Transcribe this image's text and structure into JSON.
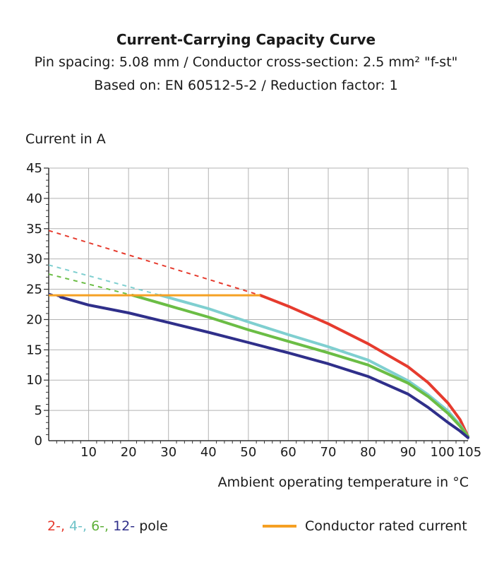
{
  "chart_data": {
    "type": "line",
    "title": "Current-Carrying Capacity Curve",
    "subtitle_lines": [
      "Pin spacing: 5.08 mm / Conductor cross-section: 2.5 mm² \"f-st\"",
      "Based on: EN 60512-5-2 / Reduction factor: 1"
    ],
    "ylabel": "Current in A",
    "xlabel": "Ambient operating temperature in °C",
    "xlim": [
      0,
      105
    ],
    "ylim": [
      0,
      45
    ],
    "xticks": [
      "10",
      "20",
      "30",
      "40",
      "50",
      "60",
      "70",
      "80",
      "90",
      "100",
      "105"
    ],
    "yticks": [
      "0",
      "5",
      "10",
      "15",
      "20",
      "25",
      "30",
      "35",
      "40",
      "45"
    ],
    "grid": true,
    "colors": {
      "pole2": "#e63b2e",
      "pole4": "#7fcfd0",
      "pole6": "#6bbd45",
      "pole12": "#2f2f8a",
      "rated": "#f5a023",
      "grid": "#b3b3b3"
    },
    "series": [
      {
        "name": "2-",
        "color": "#e63b2e",
        "extrapolated": [
          [
            0,
            34.7
          ],
          [
            53,
            24
          ]
        ],
        "solid": [
          [
            53,
            24
          ],
          [
            60,
            22.2
          ],
          [
            70,
            19.3
          ],
          [
            80,
            16
          ],
          [
            90,
            12.2
          ],
          [
            95,
            9.6
          ],
          [
            100,
            6.2
          ],
          [
            103,
            3.5
          ],
          [
            105,
            0.7
          ]
        ]
      },
      {
        "name": "4-",
        "color": "#7fcfd0",
        "extrapolated": [
          [
            0,
            29
          ],
          [
            28,
            24
          ]
        ],
        "solid": [
          [
            28,
            24
          ],
          [
            40,
            21.8
          ],
          [
            50,
            19.6
          ],
          [
            60,
            17.5
          ],
          [
            70,
            15.5
          ],
          [
            80,
            13.3
          ],
          [
            90,
            9.9
          ],
          [
            95,
            7.6
          ],
          [
            100,
            4.9
          ],
          [
            103,
            2.6
          ],
          [
            105,
            0.7
          ]
        ]
      },
      {
        "name": "6-",
        "color": "#6bbd45",
        "extrapolated": [
          [
            0,
            27.5
          ],
          [
            21,
            24
          ]
        ],
        "solid": [
          [
            21,
            24
          ],
          [
            30,
            22.3
          ],
          [
            40,
            20.4
          ],
          [
            50,
            18.3
          ],
          [
            60,
            16.4
          ],
          [
            70,
            14.5
          ],
          [
            80,
            12.5
          ],
          [
            90,
            9.5
          ],
          [
            95,
            7.3
          ],
          [
            100,
            4.5
          ],
          [
            103,
            2.4
          ],
          [
            105,
            0.7
          ]
        ]
      },
      {
        "name": "12-",
        "color": "#2f2f8a",
        "extrapolated": [
          [
            0,
            24.3
          ],
          [
            3,
            23.7
          ]
        ],
        "solid": [
          [
            3,
            23.7
          ],
          [
            10,
            22.4
          ],
          [
            20,
            21.1
          ],
          [
            30,
            19.5
          ],
          [
            40,
            17.9
          ],
          [
            50,
            16.2
          ],
          [
            60,
            14.5
          ],
          [
            70,
            12.7
          ],
          [
            80,
            10.6
          ],
          [
            90,
            7.7
          ],
          [
            95,
            5.5
          ],
          [
            100,
            3
          ],
          [
            103,
            1.6
          ],
          [
            105,
            0.5
          ]
        ]
      }
    ],
    "rated_current": {
      "name": "Conductor rated current",
      "value": 24,
      "x_range": [
        0,
        53
      ],
      "color": "#f5a023"
    },
    "legend": {
      "pole_prefixes": [
        "2-,",
        "4-,",
        "6-,",
        "12-"
      ],
      "pole_suffix": "pole",
      "rated_label": "Conductor rated current"
    }
  }
}
